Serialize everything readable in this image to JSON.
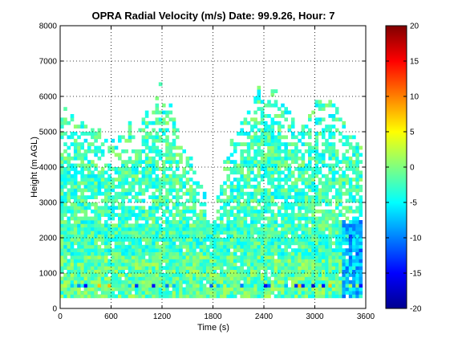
{
  "chart_data": {
    "type": "heatmap",
    "title": "OPRA Radial Velocity (m/s)  Date: 99.9.26, Hour: 7",
    "xlabel": "Time (s)",
    "ylabel": "Height (m AGL)",
    "xlim": [
      0,
      3600
    ],
    "ylim": [
      0,
      8000
    ],
    "x_ticks": [
      0,
      600,
      1200,
      1800,
      2400,
      3000,
      3600
    ],
    "y_ticks": [
      0,
      1000,
      2000,
      3000,
      4000,
      5000,
      6000,
      7000,
      8000
    ],
    "grid": true,
    "colormap": "jet",
    "colorbar": {
      "range": [
        -20,
        20
      ],
      "ticks": [
        -20,
        -15,
        -10,
        -5,
        0,
        5,
        10,
        15,
        20
      ]
    },
    "field_time_range": [
      0,
      3560
    ],
    "field_height_range": [
      300,
      6400
    ],
    "dominant_velocity_range": [
      -6,
      1
    ],
    "echo_top_by_time": {
      "time": [
        0,
        200,
        400,
        600,
        800,
        1000,
        1200,
        1400,
        1600,
        1800,
        2000,
        2200,
        2400,
        2600,
        2800,
        3000,
        3200,
        3400,
        3560
      ],
      "height": [
        5600,
        5300,
        5000,
        4900,
        5000,
        5300,
        6400,
        4700,
        3900,
        2400,
        4900,
        5300,
        6300,
        5900,
        5200,
        5700,
        5900,
        5200,
        4500
      ]
    }
  }
}
